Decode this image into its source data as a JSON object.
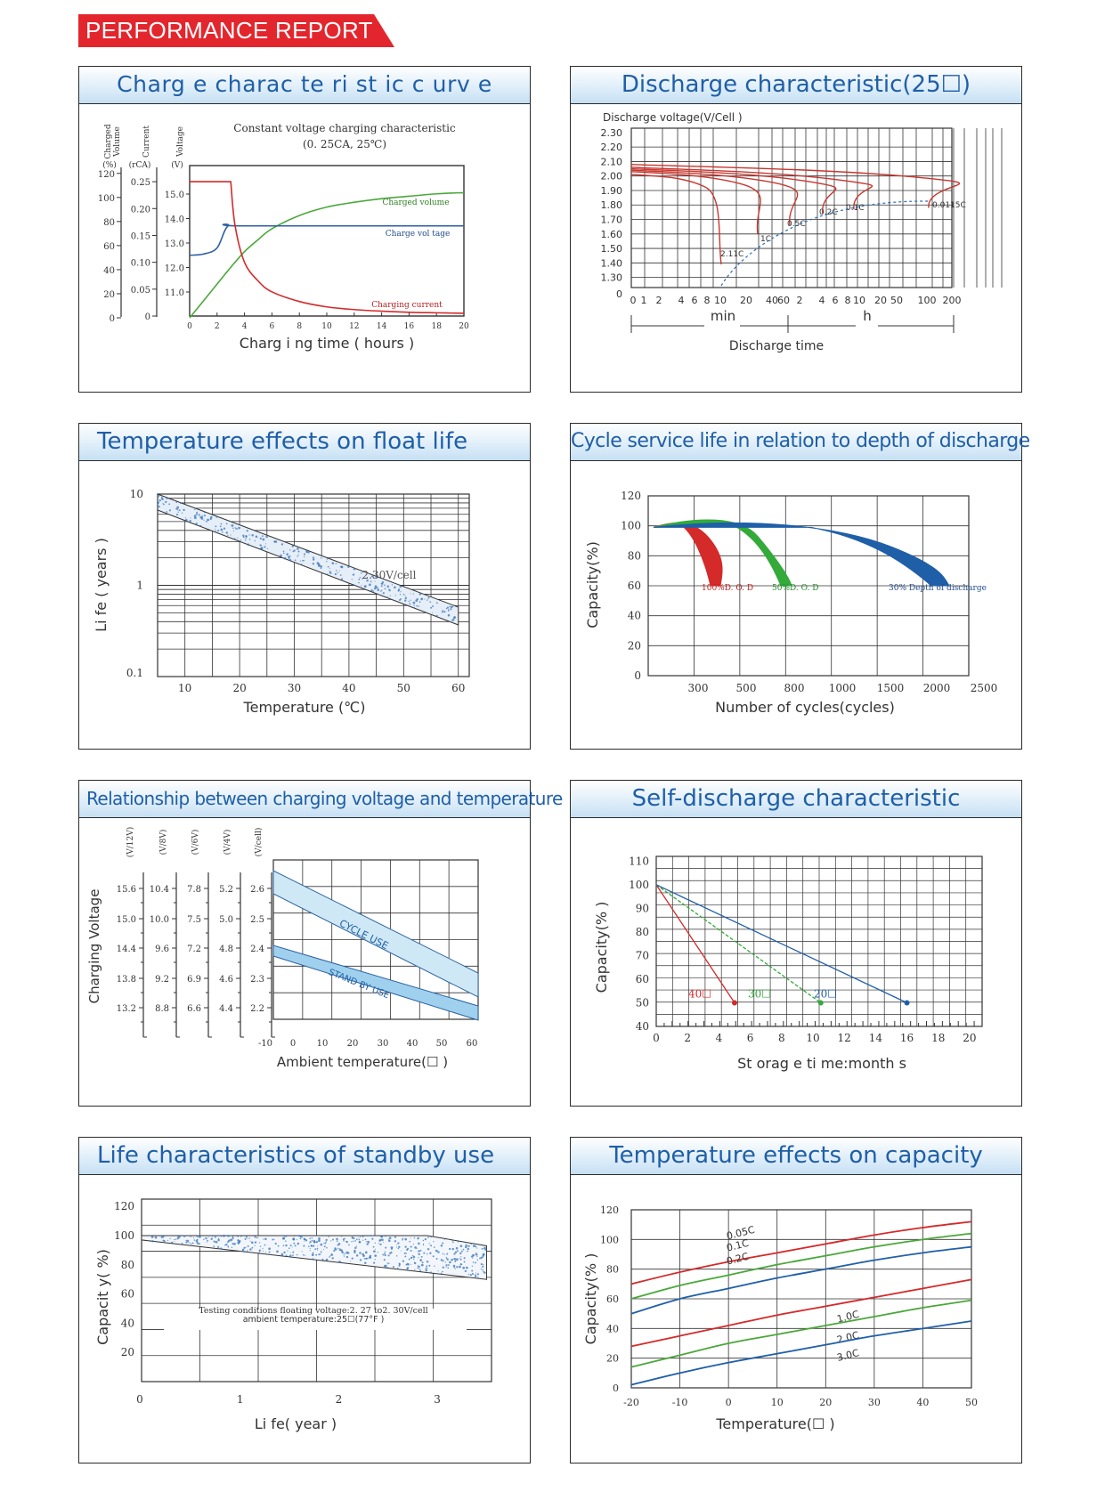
{
  "banner": {
    "title": "PERFORMANCE REPORT",
    "color": "#e3262d"
  },
  "accent": "#1f5fa8",
  "panels": [
    {
      "id": "charge",
      "title": "Charg e  charac te ri  st ic c   urv e"
    },
    {
      "id": "discharge",
      "title": "Discharge characteristic(25☐)"
    },
    {
      "id": "float",
      "title": "Temperature effects      on float life"
    },
    {
      "id": "cycle",
      "title": "Cycle  service    life    in relation     to  depth of  discharge"
    },
    {
      "id": "chgvolt",
      "title": "Relationship between charging voltage and temperature"
    },
    {
      "id": "selfdis",
      "title": "Self-discharge characteristic"
    },
    {
      "id": "standby",
      "title": "Life characteristics of standby use"
    },
    {
      "id": "tempcap",
      "title": "Temperature effects on capacity"
    }
  ],
  "chart_data": [
    {
      "id": "charge",
      "type": "line",
      "annotation_title": "Constant voltage charging characteristic",
      "annotation_sub": "(0. 25CA, 25℃)",
      "xlabel": "Charg i ng  time (  hours )",
      "x_ticks": [
        0,
        2,
        4,
        6,
        8,
        10,
        12,
        14,
        16,
        18,
        20
      ],
      "axes": [
        {
          "label": "Charged Volume",
          "unit": "(%)",
          "ticks": [
            120,
            100,
            80,
            60,
            40,
            20,
            0
          ]
        },
        {
          "label": "Current",
          "unit": "(rCA)",
          "ticks": [
            "0.25",
            "0.20",
            "0.15",
            "0.10",
            "0.05",
            "0"
          ]
        },
        {
          "label": "Voltage",
          "unit": "(V)",
          "ticks": [
            "15.0",
            "14.0",
            "13.0",
            "12.0",
            "11.0"
          ]
        }
      ],
      "series": [
        {
          "name": "Charged volume",
          "color": "#4aa83a",
          "points": [
            [
              0,
              0
            ],
            [
              1,
              14
            ],
            [
              2,
              28
            ],
            [
              3,
              42
            ],
            [
              4,
              55
            ],
            [
              5,
              65
            ],
            [
              6,
              74
            ],
            [
              8,
              85
            ],
            [
              10,
              92
            ],
            [
              12,
              96
            ],
            [
              14,
              99
            ],
            [
              16,
              101
            ],
            [
              18,
              103
            ],
            [
              20,
              104
            ]
          ]
        },
        {
          "name": "Charge vol tage",
          "color": "#2e5fa3",
          "points": [
            [
              0,
              12.5
            ],
            [
              1,
              12.55
            ],
            [
              2,
              12.8
            ],
            [
              2.8,
              13.7
            ],
            [
              4,
              13.7
            ],
            [
              20,
              13.7
            ]
          ]
        },
        {
          "name": "Charging current",
          "color": "#d42a2a",
          "points": [
            [
              0,
              0.25
            ],
            [
              3,
              0.25
            ],
            [
              3.3,
              0.17
            ],
            [
              4,
              0.1
            ],
            [
              5,
              0.065
            ],
            [
              6,
              0.045
            ],
            [
              8,
              0.027
            ],
            [
              10,
              0.017
            ],
            [
              12,
              0.012
            ],
            [
              14,
              0.009
            ],
            [
              16,
              0.007
            ],
            [
              18,
              0.006
            ],
            [
              20,
              0.005
            ]
          ]
        }
      ]
    },
    {
      "id": "discharge",
      "type": "line",
      "ylabel": "Discharge voltage(V/Cell )",
      "y_ticks": [
        "2.30",
        "2.20",
        "2.10",
        "2.00",
        "1.90",
        "1.80",
        "1.70",
        "1.60",
        "1.50",
        "1.40",
        "1.30",
        "0"
      ],
      "x_ticks_min": [
        "0",
        "1",
        "2",
        "4",
        "6",
        "8",
        "10",
        "20",
        "40",
        "60"
      ],
      "x_ticks_h": [
        "2",
        "4",
        "6",
        "8",
        "10",
        "20",
        "50",
        "100",
        "200"
      ],
      "unit_min": "min",
      "unit_h": "h",
      "xlabel": "Discharge time",
      "series": [
        {
          "name": "2.11C",
          "color": "#c8372f"
        },
        {
          "name": "1C",
          "color": "#c8372f"
        },
        {
          "name": "0.5C",
          "color": "#c8372f"
        },
        {
          "name": "0.2C",
          "color": "#c8372f"
        },
        {
          "name": "0.1C",
          "color": "#c8372f"
        },
        {
          "name": "0.0115C",
          "color": "#c8372f"
        }
      ]
    },
    {
      "id": "float",
      "type": "line",
      "ylabel": "Li fe ( years )",
      "xlabel": "Temperature  (℃)",
      "y_ticks": [
        "10",
        "1",
        "0.1"
      ],
      "x_ticks": [
        10,
        20,
        30,
        40,
        50,
        60
      ],
      "series": [
        {
          "name": "2.30V/cell",
          "points": [
            [
              10,
              7.8
            ],
            [
              60,
              0.25
            ]
          ]
        }
      ]
    },
    {
      "id": "cycle",
      "type": "line",
      "ylabel": "Capacity(%)",
      "xlabel": "Number of cycles(cycles)",
      "y_ticks": [
        120,
        100,
        80,
        60,
        40,
        20,
        0
      ],
      "x_ticks": [
        "300",
        "500",
        "800",
        "1000",
        "1500",
        "2000",
        "2500"
      ],
      "series": [
        {
          "name": "100%D. O. D",
          "color": "#d42a2a"
        },
        {
          "name": "50%D. O. D",
          "color": "#33aa3a"
        },
        {
          "name": "30% Depth of discharge",
          "color": "#1f5fa8"
        }
      ]
    },
    {
      "id": "chgvolt",
      "type": "line",
      "ylabel": "Charging Voltage",
      "xlabel": "Ambient temperature(☐   )",
      "axes": [
        {
          "unit": "(V/12V)",
          "ticks": [
            "15.6",
            "15.0",
            "14.4",
            "13.8",
            "13.2"
          ]
        },
        {
          "unit": "(V/8V)",
          "ticks": [
            "10.4",
            "10.0",
            "9.6",
            "9.2",
            "8.8"
          ]
        },
        {
          "unit": "(V/6V)",
          "ticks": [
            "7.8",
            "7.5",
            "7.2",
            "6.9",
            "6.6"
          ]
        },
        {
          "unit": "(V/4V)",
          "ticks": [
            "5.2",
            "5.0",
            "4.8",
            "4.6",
            "4.4"
          ]
        },
        {
          "unit": "(V/cell)",
          "ticks": [
            "2.6",
            "2.5",
            "2.4",
            "2.3",
            "2.2"
          ]
        }
      ],
      "x_ticks": [
        "-10",
        "0",
        "10",
        "20",
        "30",
        "40",
        "50",
        "60"
      ],
      "series": [
        {
          "name": "CYCLE USE",
          "color": "#cfe8f5"
        },
        {
          "name": "STAND BY USE",
          "color": "#9fd1ee"
        }
      ]
    },
    {
      "id": "selfdis",
      "type": "line",
      "ylabel": "Capacity(% )",
      "xlabel": "St orag e ti    me:month s",
      "y_ticks": [
        110,
        100,
        90,
        80,
        70,
        60,
        50,
        40
      ],
      "x_ticks": [
        0,
        2,
        4,
        6,
        8,
        10,
        12,
        14,
        16,
        18,
        20
      ],
      "series": [
        {
          "name": "40☐",
          "color": "#d42a2a",
          "points": [
            [
              0,
              100
            ],
            [
              5,
              50
            ]
          ]
        },
        {
          "name": "30☐",
          "color": "#33aa3a",
          "points": [
            [
              0,
              100
            ],
            [
              10.5,
              50
            ]
          ]
        },
        {
          "name": "20☐",
          "color": "#1f5fa8",
          "points": [
            [
              0,
              100
            ],
            [
              16,
              50
            ]
          ]
        }
      ]
    },
    {
      "id": "standby",
      "type": "area",
      "ylabel": "Capacit  y( %)",
      "xlabel": "Li fe(  year )",
      "y_ticks": [
        120,
        100,
        80,
        60,
        40,
        20
      ],
      "x_ticks": [
        "0",
        "1",
        "2",
        "3"
      ],
      "note_1": "Testing  conditions  floating  voltage:2. 27  to2. 30V/cell",
      "note_2": "ambient temperature:25☐(77°F      )",
      "band": {
        "upper": [
          [
            0,
            100
          ],
          [
            2.9,
            100
          ],
          [
            3.5,
            93
          ]
        ],
        "lower": [
          [
            0,
            97
          ],
          [
            3.5,
            70
          ]
        ]
      }
    },
    {
      "id": "tempcap",
      "type": "line",
      "ylabel": "Capacity(% )",
      "xlabel": "Temperature(☐   )",
      "y_ticks": [
        120,
        100,
        80,
        60,
        40,
        20,
        0
      ],
      "x_ticks": [
        "-20",
        "-10",
        "0",
        "10",
        "20",
        "30",
        "40",
        "50"
      ],
      "series": [
        {
          "name": "0.05C",
          "color": "#d42a2a",
          "points": [
            [
              -20,
              70
            ],
            [
              -10,
              78
            ],
            [
              0,
              85
            ],
            [
              10,
              91
            ],
            [
              20,
              97
            ],
            [
              30,
              103
            ],
            [
              40,
              108
            ],
            [
              50,
              112
            ]
          ]
        },
        {
          "name": "0.1C",
          "color": "#4aa83a",
          "points": [
            [
              -20,
              60
            ],
            [
              -10,
              69
            ],
            [
              0,
              76
            ],
            [
              10,
              83
            ],
            [
              20,
              89
            ],
            [
              30,
              95
            ],
            [
              40,
              100
            ],
            [
              50,
              104
            ]
          ]
        },
        {
          "name": "0.2C",
          "color": "#1f5fa8",
          "points": [
            [
              -20,
              50
            ],
            [
              -10,
              60
            ],
            [
              0,
              67
            ],
            [
              10,
              74
            ],
            [
              20,
              80
            ],
            [
              30,
              86
            ],
            [
              40,
              91
            ],
            [
              50,
              95
            ]
          ]
        },
        {
          "name": "1.0C",
          "color": "#d42a2a",
          "points": [
            [
              -20,
              28
            ],
            [
              -10,
              35
            ],
            [
              0,
              42
            ],
            [
              10,
              49
            ],
            [
              20,
              55
            ],
            [
              30,
              61
            ],
            [
              40,
              67
            ],
            [
              50,
              73
            ]
          ]
        },
        {
          "name": "2.0C",
          "color": "#4aa83a",
          "points": [
            [
              -20,
              14
            ],
            [
              -10,
              22
            ],
            [
              0,
              30
            ],
            [
              10,
              36
            ],
            [
              20,
              42
            ],
            [
              30,
              48
            ],
            [
              40,
              54
            ],
            [
              50,
              59
            ]
          ]
        },
        {
          "name": "3.0C",
          "color": "#1f5fa8",
          "points": [
            [
              -20,
              2
            ],
            [
              -10,
              10
            ],
            [
              0,
              17
            ],
            [
              10,
              23
            ],
            [
              20,
              29
            ],
            [
              30,
              35
            ],
            [
              40,
              40
            ],
            [
              50,
              45
            ]
          ]
        }
      ]
    }
  ]
}
